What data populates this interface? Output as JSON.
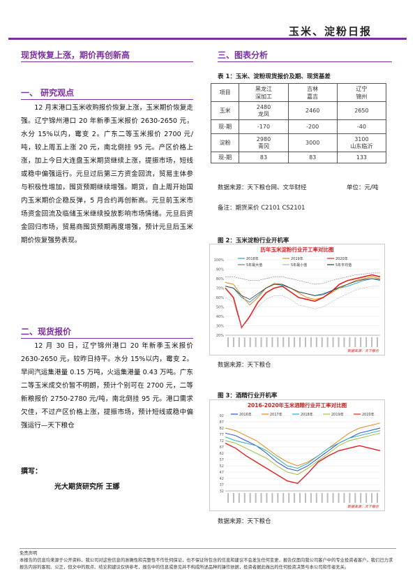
{
  "header": {
    "title": "玉米、淀粉日报"
  },
  "left": {
    "main_title": "现货恢复上涨，期价再创新高",
    "s1_title": "一、  研究观点",
    "s1_text": "12 月末港口玉米收购报价恢复上涨，玉米期价恢复走强。辽宁锦州港口 20 年新季玉米报价 2630-2650 元，水分 15%以内，霉变 2。广东二等玉米报价 2700 元/吨，较上周五上涨 20 元，南北倒挂 95 元。产区价格上涨，加上今日大连盘玉米期货继续上涨，提振市场，短线或稳中偏强运行。元旦过后第三方资金回流，贸易主体参与积极性增加，囤货预期继续增强。期货，自上周开始国内玉米期价企稳反弹，5 月合约再创新高。元旦前玉米市场资金回流及临储玉米继续投放影响市场情绪。元旦后资金回归市场，贸易商囤货预期再度增强，预计元旦后玉米期价恢复强势表现。",
    "s2_title": "二、现货报价",
    "s2_text": "12 月 30 日，辽宁锦州港口 20 年新季玉米报价 2630-2650 元，较昨日持平。水分 15%以内，霉变 2。早间汽运集港量 0.15 万吨，火运集港量 0.43 万吨。广东二等玉米成交价暂不明朗，预计个别可在 2700 元，二等新粮报价 2750-2780 元/吨，南北倒挂 95 元。港口需求欠佳，不过产区价格上涨，提振市场，预计短线或稳中偏强运行—天下粮仓",
    "author_label": "撰写：",
    "author": "光大期货研究所  王娜"
  },
  "right": {
    "s3_title": "三、图表分析",
    "table_caption": "表 1：玉米、淀粉现货报价及期、现货基差",
    "table": {
      "header": [
        "项目",
        "黑龙江\n深加工",
        "吉林\n嘉吉",
        "辽宁\n锦州"
      ],
      "rows": [
        [
          "玉米",
          "2480\n龙凤",
          "2460",
          "2650"
        ],
        [
          "现-期",
          "-170",
          "-200",
          "-40"
        ],
        [
          "淀粉",
          "2980\n青冈",
          "3000",
          "3100\n山东临沂"
        ],
        [
          "现-期",
          "83",
          "83",
          "133"
        ]
      ]
    },
    "table_source": "数据来源：天下粮仓网、文华财经",
    "table_unit": "单位：元/吨",
    "table_note": "备注：期货采价 C2101   CS2101",
    "fig2_caption": "图 2：玉米淀粉行业开机率",
    "fig2_title": "历年玉米淀粉行业开工率对比图",
    "fig2_legend": [
      "2018年",
      "2019年",
      "2020年",
      "5年最大值",
      "5年最小值",
      "5年平均值"
    ],
    "fig2_yticks": [
      "100%",
      "90%",
      "80%",
      "70%",
      "60%",
      "50%",
      "40%",
      "30%",
      "20%"
    ],
    "fig2_brand": "数据来源：天下粮仓",
    "fig2_source": "数据来源：天下粮仓",
    "fig3_caption": "图 3：酒精行业开机率",
    "fig3_title": "2016-2020年玉米酒精行业开工率对比图",
    "fig3_legend": [
      "2016年",
      "2017年",
      "2018年",
      "2019年",
      "2020年"
    ],
    "fig3_yticks": [
      "92",
      "87",
      "82",
      "77",
      "72",
      "67",
      "62",
      "57",
      "52",
      "47",
      "42",
      "37",
      "32"
    ],
    "fig3_brand": "数据来源：天下粮仓",
    "fig3_source": "数据来源：天下粮仓"
  },
  "footer": {
    "label": "免责声明",
    "text": "本报告的信息均来源于公开资料，我公司对这些信息的准确性和完整性不作任何保证，也不保证所包含的信息和建议不会发生任何变更，报告仅面向我公司客户中的专业投资者客户。我们已力求报告内容的客观、公正，但文中的观点、结论和建议仅供参考，报告中的信息或意见并不构成所述品种的操作依据，投资者据此做出的任何投资决策与本公司和作者无关。"
  },
  "colors": {
    "accent": "#7b2fa0",
    "red": "#e02020",
    "blue": "#2a4fd0"
  },
  "chart_data": [
    {
      "type": "line",
      "title": "历年玉米淀粉行业开工率对比图",
      "ylim": [
        20,
        100
      ],
      "series": [
        {
          "name": "2018年",
          "values": [
            72,
            70,
            60,
            55,
            62,
            70,
            74,
            73,
            70,
            66,
            64,
            62,
            64,
            67,
            70,
            72,
            75,
            78,
            80,
            78
          ]
        },
        {
          "name": "2019年",
          "values": [
            76,
            74,
            62,
            52,
            60,
            70,
            75,
            74,
            70,
            65,
            60,
            58,
            60,
            65,
            70,
            74,
            78,
            80,
            82,
            80
          ]
        },
        {
          "name": "2020年",
          "values": [
            70,
            60,
            28,
            40,
            55,
            65,
            70,
            72,
            66,
            60,
            58,
            56,
            60,
            66,
            74,
            78,
            80,
            82,
            84,
            82
          ]
        },
        {
          "name": "5年最大值",
          "values": [
            82,
            82,
            80,
            78,
            78,
            80,
            82,
            82,
            80,
            78,
            76,
            74,
            75,
            78,
            80,
            82,
            84,
            85,
            86,
            86
          ]
        },
        {
          "name": "5年最小值",
          "values": [
            60,
            55,
            28,
            38,
            50,
            58,
            62,
            62,
            58,
            52,
            50,
            48,
            50,
            55,
            60,
            64,
            68,
            70,
            72,
            72
          ]
        },
        {
          "name": "5年平均值",
          "values": [
            72,
            70,
            62,
            58,
            64,
            70,
            74,
            74,
            70,
            66,
            64,
            62,
            63,
            67,
            71,
            74,
            77,
            79,
            80,
            79
          ]
        }
      ]
    },
    {
      "type": "line",
      "title": "2016-2020年玉米酒精行业开工率对比图",
      "ylim": [
        32,
        92
      ],
      "series": [
        {
          "name": "2016年",
          "values": [
            78,
            76,
            72,
            68,
            62,
            55,
            50,
            48,
            52,
            58,
            64,
            70,
            74,
            78,
            80,
            82
          ]
        },
        {
          "name": "2017年",
          "values": [
            82,
            80,
            76,
            72,
            66,
            60,
            55,
            52,
            55,
            60,
            66,
            72,
            78,
            82,
            84,
            86
          ]
        },
        {
          "name": "2018年",
          "values": [
            75,
            72,
            70,
            68,
            64,
            58,
            52,
            50,
            54,
            60,
            66,
            70,
            74,
            76,
            78,
            80
          ]
        },
        {
          "name": "2019年",
          "values": [
            72,
            70,
            66,
            62,
            58,
            52,
            47,
            45,
            50,
            56,
            62,
            68,
            72,
            74,
            76,
            78
          ]
        },
        {
          "name": "2020年",
          "values": [
            70,
            66,
            60,
            55,
            50,
            45,
            40,
            38,
            46,
            55,
            60,
            64,
            66,
            68,
            66,
            64
          ]
        }
      ]
    }
  ]
}
